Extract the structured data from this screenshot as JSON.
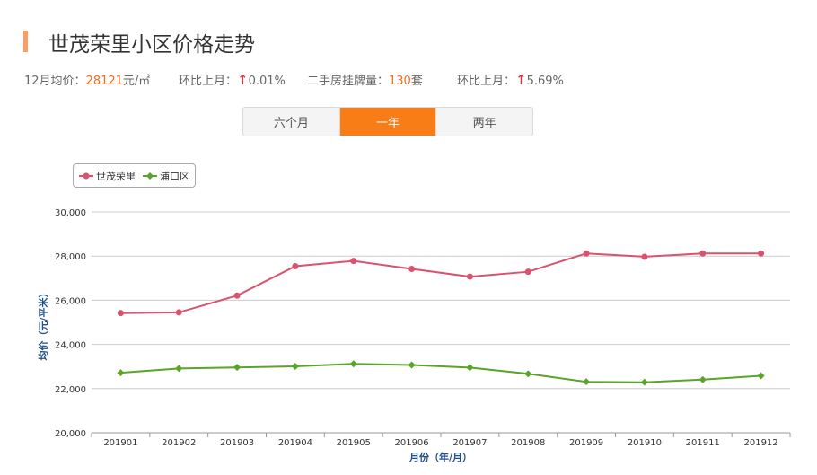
{
  "header": {
    "title": "世茂荣里小区价格走势"
  },
  "stats": {
    "avg_label": "12月均价：",
    "avg_value": "28121",
    "avg_unit": "元/㎡",
    "mom1_label": "环比上月：",
    "mom1_value": "0.01%",
    "listing_label": "二手房挂牌量：",
    "listing_value": "130",
    "listing_unit": "套",
    "mom2_label": "环比上月：",
    "mom2_value": "5.69%",
    "arrow_icon": "arrow-up-icon"
  },
  "tabs": [
    {
      "label": "六个月",
      "active": false
    },
    {
      "label": "一年",
      "active": true
    },
    {
      "label": "两年",
      "active": false
    }
  ],
  "colors": {
    "accent": "#f87d16",
    "series1": "#d9536f",
    "series2": "#5aa428",
    "grid": "#cccccc"
  },
  "chart_data": {
    "type": "line",
    "x": [
      "201901",
      "201902",
      "201903",
      "201904",
      "201905",
      "201906",
      "201907",
      "201908",
      "201909",
      "201910",
      "201911",
      "201912"
    ],
    "series": [
      {
        "name": "世茂荣里",
        "values": [
          25420,
          25450,
          26210,
          27540,
          27780,
          27420,
          27070,
          27290,
          28120,
          27970,
          28120,
          28121
        ],
        "marker": "circle"
      },
      {
        "name": "浦口区",
        "values": [
          22720,
          22910,
          22960,
          23010,
          23120,
          23070,
          22950,
          22670,
          22310,
          22290,
          22410,
          22580
        ],
        "marker": "diamond"
      }
    ],
    "ylim": [
      20000,
      30000
    ],
    "yticks": [
      "20,000",
      "22,000",
      "24,000",
      "26,000",
      "28,000",
      "30,000"
    ],
    "xlabel": "月份（年/月）",
    "ylabel": "均价（元/平米）",
    "grid": true,
    "legend": "top-left"
  }
}
